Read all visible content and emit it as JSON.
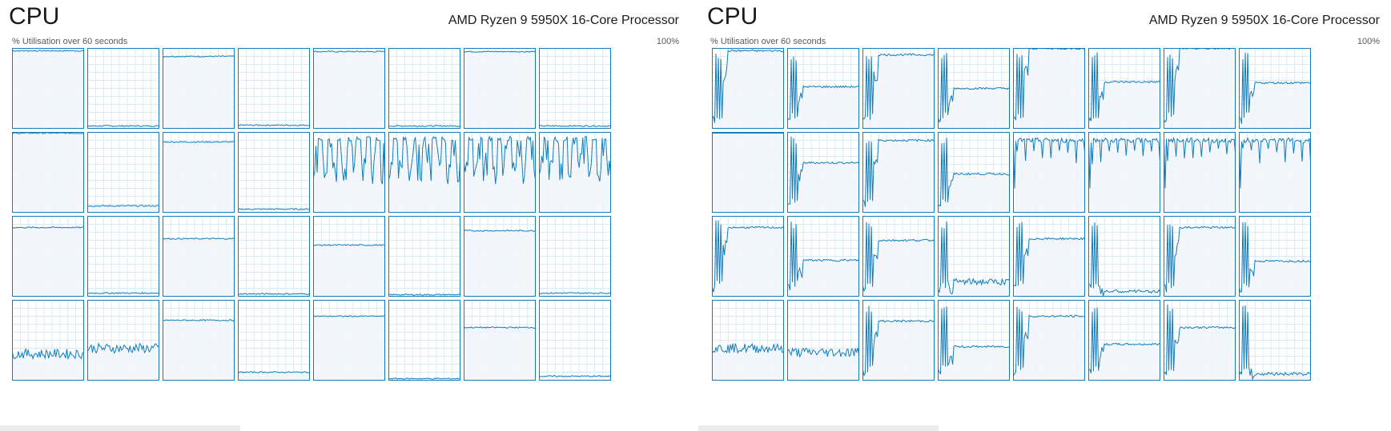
{
  "colors": {
    "line": "#117dbb",
    "border": "#117dbb",
    "fill": "#f1f6fb",
    "grid": "#d9eaf4"
  },
  "panels": [
    {
      "title": "CPU",
      "processor": "AMD Ryzen 9 5950X 16-Core Processor",
      "subtitle": "% Utilisation over 60 seconds",
      "max_label": "100%",
      "cores": [
        {
          "pattern": "flat",
          "level": 97
        },
        {
          "pattern": "flat",
          "level": 3
        },
        {
          "pattern": "flat",
          "level": 90
        },
        {
          "pattern": "flat",
          "level": 4
        },
        {
          "pattern": "flat",
          "level": 96
        },
        {
          "pattern": "flat",
          "level": 3
        },
        {
          "pattern": "flat",
          "level": 96
        },
        {
          "pattern": "flat",
          "level": 3
        },
        {
          "pattern": "flat",
          "level": 99
        },
        {
          "pattern": "flat",
          "level": 8
        },
        {
          "pattern": "flat",
          "level": 88
        },
        {
          "pattern": "flat",
          "level": 4
        },
        {
          "pattern": "spiky",
          "level": 55
        },
        {
          "pattern": "spiky",
          "level": 55
        },
        {
          "pattern": "spiky",
          "level": 55
        },
        {
          "pattern": "spiky",
          "level": 55
        },
        {
          "pattern": "flat",
          "level": 86
        },
        {
          "pattern": "flat",
          "level": 4
        },
        {
          "pattern": "flat",
          "level": 72
        },
        {
          "pattern": "flat",
          "level": 3
        },
        {
          "pattern": "flat",
          "level": 64
        },
        {
          "pattern": "flat",
          "level": 2
        },
        {
          "pattern": "flat",
          "level": 82
        },
        {
          "pattern": "flat",
          "level": 4
        },
        {
          "pattern": "noisy",
          "level": 33
        },
        {
          "pattern": "noisy",
          "level": 40
        },
        {
          "pattern": "flat",
          "level": 75
        },
        {
          "pattern": "flat",
          "level": 10
        },
        {
          "pattern": "flat",
          "level": 80
        },
        {
          "pattern": "flat",
          "level": 2
        },
        {
          "pattern": "flat",
          "level": 66
        },
        {
          "pattern": "flat",
          "level": 5
        }
      ]
    },
    {
      "title": "CPU",
      "processor": "AMD Ryzen 9 5950X 16-Core Processor",
      "subtitle": "% Utilisation over 60 seconds",
      "max_label": "100%",
      "cores": [
        {
          "pattern": "ramp",
          "level": 97
        },
        {
          "pattern": "ramp",
          "level": 52
        },
        {
          "pattern": "ramp",
          "level": 92
        },
        {
          "pattern": "ramp",
          "level": 50
        },
        {
          "pattern": "ramp",
          "level": 100
        },
        {
          "pattern": "ramp",
          "level": 58
        },
        {
          "pattern": "ramp",
          "level": 100
        },
        {
          "pattern": "ramp",
          "level": 57
        },
        {
          "pattern": "top",
          "level": 99
        },
        {
          "pattern": "ramp",
          "level": 62
        },
        {
          "pattern": "ramp",
          "level": 90
        },
        {
          "pattern": "ramp",
          "level": 48
        },
        {
          "pattern": "spikytop",
          "level": 85
        },
        {
          "pattern": "spikytop",
          "level": 85
        },
        {
          "pattern": "spikytop",
          "level": 85
        },
        {
          "pattern": "spikytop",
          "level": 85
        },
        {
          "pattern": "ramp",
          "level": 86
        },
        {
          "pattern": "ramp",
          "level": 45
        },
        {
          "pattern": "ramp",
          "level": 70
        },
        {
          "pattern": "noisyramp",
          "level": 18
        },
        {
          "pattern": "ramp",
          "level": 72
        },
        {
          "pattern": "lowramp",
          "level": 6
        },
        {
          "pattern": "ramp",
          "level": 86
        },
        {
          "pattern": "ramp",
          "level": 44
        },
        {
          "pattern": "noisy",
          "level": 40
        },
        {
          "pattern": "noisy",
          "level": 35
        },
        {
          "pattern": "ramp",
          "level": 74
        },
        {
          "pattern": "ramp",
          "level": 42
        },
        {
          "pattern": "ramp",
          "level": 80
        },
        {
          "pattern": "ramp",
          "level": 45
        },
        {
          "pattern": "ramp",
          "level": 66
        },
        {
          "pattern": "lowramp",
          "level": 8
        }
      ]
    }
  ]
}
